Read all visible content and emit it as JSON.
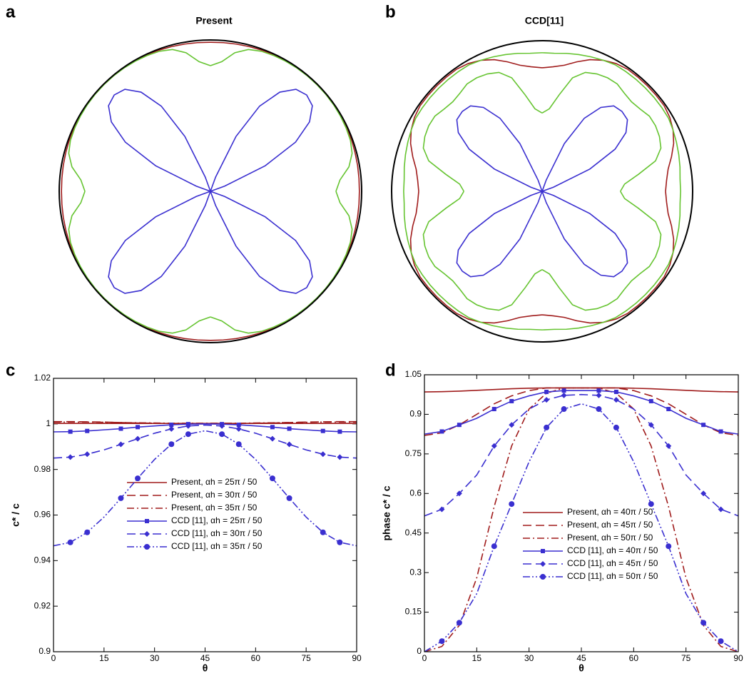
{
  "chart_data": [
    {
      "type": "polar",
      "panel": "a",
      "title": "Present",
      "rlim": [
        0,
        1
      ],
      "theta": [
        0,
        5,
        10,
        15,
        20,
        25,
        30,
        35,
        40,
        45,
        50,
        55,
        60,
        65,
        70,
        75,
        80,
        85,
        90
      ],
      "series": [
        {
          "color": "#a01c1c",
          "r": [
            0.985,
            0.986,
            0.988,
            0.99,
            0.993,
            0.996,
            0.998,
            0.999,
            1,
            1,
            1,
            0.999,
            0.998,
            0.996,
            0.993,
            0.99,
            0.988,
            0.986,
            0.985
          ]
        },
        {
          "color": "#66c431",
          "r": [
            0.83,
            0.86,
            0.93,
            0.97,
            0.985,
            0.99,
            0.993,
            0.995,
            0.996,
            0.996,
            0.996,
            0.995,
            0.993,
            0.99,
            0.985,
            0.97,
            0.93,
            0.86,
            0.83
          ]
        },
        {
          "color": "#3a2fd0",
          "r": [
            0,
            0,
            0,
            0,
            0.1,
            0.4,
            0.65,
            0.8,
            0.88,
            0.9,
            0.88,
            0.8,
            0.65,
            0.4,
            0.1,
            0,
            0,
            0,
            0
          ]
        }
      ]
    },
    {
      "type": "polar",
      "panel": "b",
      "title": "CCD[11]",
      "rlim": [
        0,
        1
      ],
      "theta": [
        0,
        5,
        10,
        15,
        20,
        25,
        30,
        35,
        40,
        45,
        50,
        55,
        60,
        65,
        70,
        75,
        80,
        85,
        90
      ],
      "series": [
        {
          "color": "#a01c1c",
          "r": [
            0.82,
            0.83,
            0.85,
            0.89,
            0.93,
            0.96,
            0.98,
            0.99,
            0.99,
            0.99,
            0.99,
            0.99,
            0.98,
            0.96,
            0.93,
            0.89,
            0.85,
            0.83,
            0.82
          ]
        },
        {
          "color": "#66c431",
          "r": [
            0.92,
            0.92,
            0.93,
            0.94,
            0.95,
            0.96,
            0.97,
            0.97,
            0.97,
            0.97,
            0.97,
            0.97,
            0.97,
            0.96,
            0.95,
            0.94,
            0.93,
            0.92,
            0.92
          ]
        },
        {
          "color": "#66c431",
          "r": [
            0.52,
            0.55,
            0.65,
            0.78,
            0.84,
            0.86,
            0.87,
            0.87,
            0.85,
            0.84,
            0.85,
            0.87,
            0.87,
            0.86,
            0.84,
            0.78,
            0.65,
            0.55,
            0.52
          ]
        },
        {
          "color": "#3a2fd0",
          "r": [
            0,
            0,
            0,
            0,
            0.08,
            0.35,
            0.56,
            0.68,
            0.74,
            0.75,
            0.74,
            0.68,
            0.56,
            0.35,
            0.08,
            0,
            0,
            0,
            0
          ]
        }
      ]
    },
    {
      "type": "line",
      "panel": "c",
      "ylabel": "c* / c",
      "xlabel": "θ",
      "x": [
        0,
        5,
        10,
        15,
        20,
        25,
        30,
        35,
        40,
        45,
        50,
        55,
        60,
        65,
        70,
        75,
        80,
        85,
        90
      ],
      "xlim": [
        0,
        90
      ],
      "xticks": [
        0,
        15,
        30,
        45,
        60,
        75,
        90
      ],
      "ylim": [
        0.9,
        1.02
      ],
      "yticks": [
        0.9,
        0.92,
        0.94,
        0.96,
        0.98,
        1,
        1.02
      ],
      "series": [
        {
          "name": "Present, αh = 25π / 50",
          "color": "#a01c1c",
          "dash": "solid",
          "marker": "none",
          "values": [
            1.0002,
            1.0002,
            1.0002,
            1.0002,
            1.0002,
            1.0002,
            1.0002,
            1.0002,
            1.0002,
            1.0002,
            1.0002,
            1.0002,
            1.0002,
            1.0002,
            1.0002,
            1.0002,
            1.0002,
            1.0002,
            1.0002
          ]
        },
        {
          "name": "Present, αh = 30π / 50",
          "color": "#a01c1c",
          "dash": "dash",
          "marker": "none",
          "values": [
            1.001,
            1.001,
            1.0009,
            1.0008,
            1.0006,
            1.0004,
            1.0003,
            1.0001,
            1.0,
            1.0,
            1.0,
            1.0001,
            1.0003,
            1.0004,
            1.0006,
            1.0008,
            1.0009,
            1.001,
            1.001
          ]
        },
        {
          "name": "Present, αh = 35π / 50",
          "color": "#a01c1c",
          "dash": "dashdot",
          "marker": "none",
          "values": [
            1.0008,
            1.0008,
            1.0008,
            1.0007,
            1.0006,
            1.0005,
            1.0004,
            1.0003,
            1.0003,
            1.0003,
            1.0003,
            1.0003,
            1.0004,
            1.0005,
            1.0006,
            1.0007,
            1.0008,
            1.0008,
            1.0008
          ]
        },
        {
          "name": "CCD [11], αh = 25π / 50",
          "color": "#3a2fd0",
          "dash": "solid",
          "marker": "square",
          "values": [
            0.9965,
            0.9966,
            0.9969,
            0.9974,
            0.9979,
            0.9986,
            0.9991,
            0.9996,
            0.9999,
            1.0,
            0.9999,
            0.9996,
            0.9991,
            0.9986,
            0.9979,
            0.9974,
            0.9969,
            0.9966,
            0.9965
          ]
        },
        {
          "name": "CCD [11], αh = 30π / 50",
          "color": "#3a2fd0",
          "dash": "dash",
          "marker": "diamond",
          "values": [
            0.985,
            0.9854,
            0.9867,
            0.9886,
            0.991,
            0.9935,
            0.9959,
            0.9978,
            0.9991,
            0.9995,
            0.9991,
            0.9978,
            0.9959,
            0.9935,
            0.991,
            0.9886,
            0.9867,
            0.9854,
            0.985
          ]
        },
        {
          "name": "CCD [11], αh = 35π / 50",
          "color": "#3a2fd0",
          "dash": "dashdotdot",
          "marker": "circle",
          "values": [
            0.9465,
            0.948,
            0.9524,
            0.9591,
            0.9674,
            0.9761,
            0.9844,
            0.9911,
            0.9955,
            0.997,
            0.9955,
            0.9911,
            0.9844,
            0.9761,
            0.9674,
            0.9591,
            0.9524,
            0.948,
            0.9465
          ]
        }
      ]
    },
    {
      "type": "line",
      "panel": "d",
      "ylabel": "phase c* / c",
      "xlabel": "θ",
      "x": [
        0,
        5,
        10,
        15,
        20,
        25,
        30,
        35,
        40,
        45,
        50,
        55,
        60,
        65,
        70,
        75,
        80,
        85,
        90
      ],
      "xlim": [
        0,
        90
      ],
      "xticks": [
        0,
        15,
        30,
        45,
        60,
        75,
        90
      ],
      "ylim": [
        0,
        1.05
      ],
      "yticks": [
        0,
        0.15,
        0.3,
        0.45,
        0.6,
        0.75,
        0.9,
        1.05
      ],
      "series": [
        {
          "name": "Present, αh = 40π / 50",
          "color": "#a01c1c",
          "dash": "solid",
          "marker": "none",
          "values": [
            0.985,
            0.986,
            0.988,
            0.991,
            0.994,
            0.997,
            0.999,
            1.0,
            1.0,
            1.0,
            1.0,
            1.0,
            0.999,
            0.997,
            0.994,
            0.991,
            0.988,
            0.986,
            0.985
          ]
        },
        {
          "name": "Present, αh = 45π / 50",
          "color": "#a01c1c",
          "dash": "dash",
          "marker": "none",
          "values": [
            0.82,
            0.83,
            0.86,
            0.9,
            0.94,
            0.97,
            0.99,
            1.0,
            1.0,
            1.0,
            1.0,
            1.0,
            0.99,
            0.97,
            0.94,
            0.9,
            0.86,
            0.83,
            0.82
          ]
        },
        {
          "name": "Present, αh = 50π / 50",
          "color": "#a01c1c",
          "dash": "dashdot",
          "marker": "none",
          "values": [
            0,
            0.02,
            0.1,
            0.28,
            0.55,
            0.78,
            0.92,
            0.98,
            1.0,
            1.0,
            1.0,
            0.98,
            0.92,
            0.78,
            0.55,
            0.28,
            0.1,
            0.02,
            0
          ]
        },
        {
          "name": "CCD [11], αh = 40π / 50",
          "color": "#3a2fd0",
          "dash": "solid",
          "marker": "square",
          "values": [
            0.825,
            0.835,
            0.86,
            0.885,
            0.92,
            0.95,
            0.97,
            0.985,
            0.99,
            0.99,
            0.99,
            0.985,
            0.97,
            0.95,
            0.92,
            0.885,
            0.86,
            0.835,
            0.825
          ]
        },
        {
          "name": "CCD [11], αh = 45π / 50",
          "color": "#3a2fd0",
          "dash": "dash",
          "marker": "diamond",
          "values": [
            0.515,
            0.54,
            0.6,
            0.67,
            0.78,
            0.86,
            0.92,
            0.955,
            0.972,
            0.975,
            0.972,
            0.955,
            0.92,
            0.86,
            0.78,
            0.67,
            0.6,
            0.54,
            0.515
          ]
        },
        {
          "name": "CCD [11], αh = 50π / 50",
          "color": "#3a2fd0",
          "dash": "dashdotdot",
          "marker": "circle",
          "values": [
            0,
            0.04,
            0.11,
            0.22,
            0.4,
            0.56,
            0.72,
            0.85,
            0.92,
            0.94,
            0.92,
            0.85,
            0.72,
            0.56,
            0.4,
            0.22,
            0.11,
            0.04,
            0
          ]
        }
      ]
    }
  ]
}
